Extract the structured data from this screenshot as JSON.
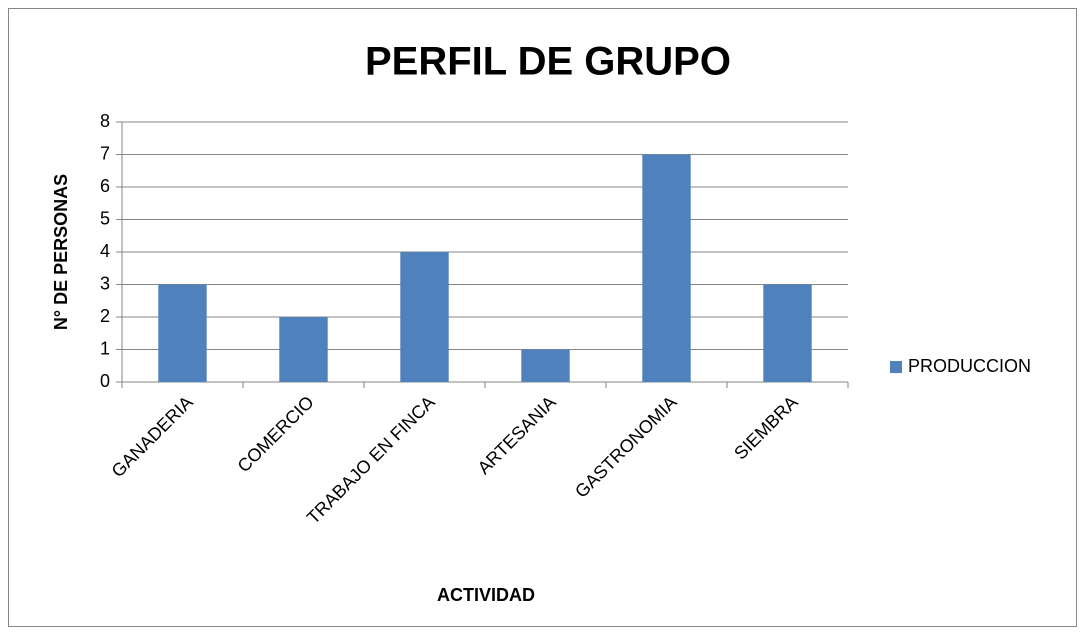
{
  "chart_data": {
    "type": "bar",
    "title": "PERFIL DE GRUPO",
    "x_label": "ACTIVIDAD",
    "y_label": "N° DE PERSONAS",
    "categories": [
      "GANADERIA",
      "COMERCIO",
      "TRABAJO EN FINCA",
      "ARTESANIA",
      "GASTRONOMIA",
      "SIEMBRA"
    ],
    "series": [
      {
        "name": "PRODUCCION",
        "color": "#4f81bd",
        "values": [
          3,
          2,
          4,
          1,
          7,
          3
        ]
      }
    ],
    "ylim": [
      0,
      8
    ],
    "yticks": [
      0,
      1,
      2,
      3,
      4,
      5,
      6,
      7,
      8
    ],
    "grid": true,
    "legend": "right"
  }
}
